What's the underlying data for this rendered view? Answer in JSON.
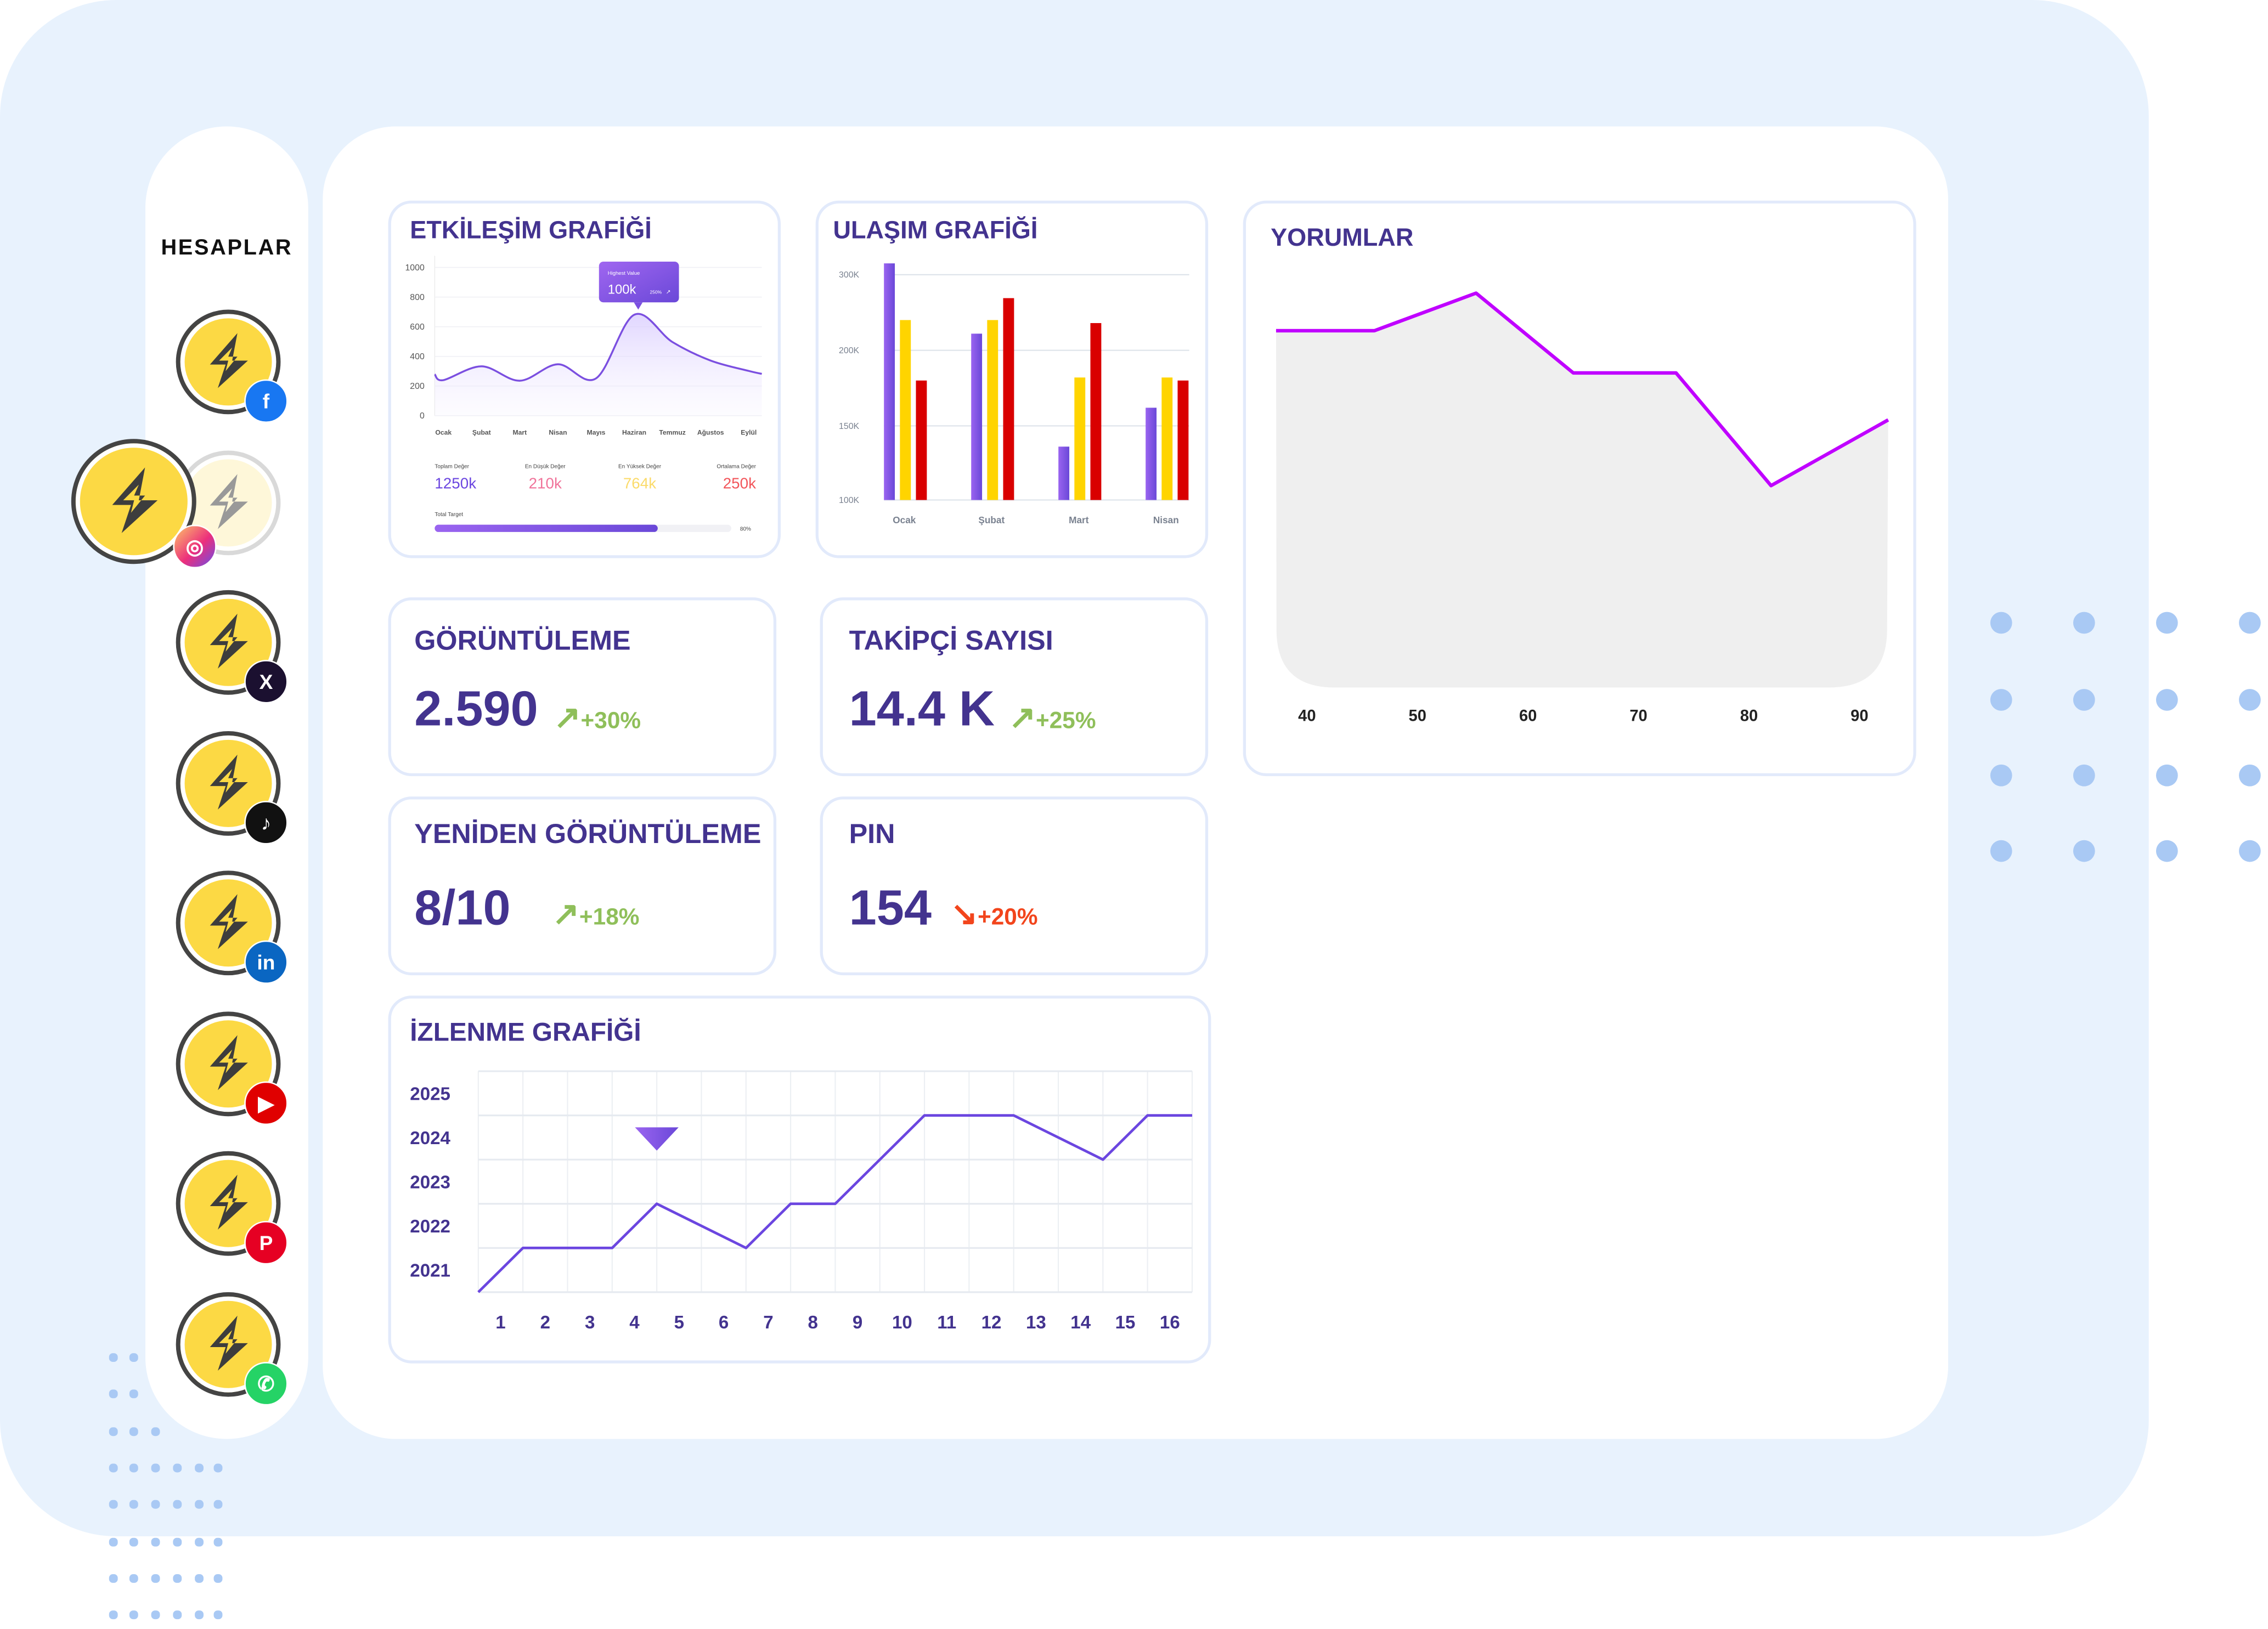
{
  "sidebar": {
    "title": "HESAPLAR",
    "accounts": [
      {
        "platform": "facebook",
        "icon": "facebook-icon",
        "glyph": "f",
        "color": "#1877f2",
        "selected": false
      },
      {
        "platform": "instagram",
        "icon": "instagram-icon",
        "glyph": "◎",
        "color": "#e1306c",
        "selected": true
      },
      {
        "platform": "x",
        "icon": "x-icon",
        "glyph": "X",
        "color": "#1b1030",
        "selected": false
      },
      {
        "platform": "tiktok",
        "icon": "tiktok-icon",
        "glyph": "♪",
        "color": "#111111",
        "selected": false
      },
      {
        "platform": "linkedin",
        "icon": "linkedin-icon",
        "glyph": "in",
        "color": "#0a66c2",
        "selected": false
      },
      {
        "platform": "youtube",
        "icon": "youtube-icon",
        "glyph": "▶",
        "color": "#e00000",
        "selected": false
      },
      {
        "platform": "pinterest",
        "icon": "pinterest-icon",
        "glyph": "P",
        "color": "#e60023",
        "selected": false
      },
      {
        "platform": "whatsapp",
        "icon": "whatsapp-icon",
        "glyph": "✆",
        "color": "#25d366",
        "selected": false
      }
    ]
  },
  "colors": {
    "title": "#43338f",
    "up": "#8fbf5a",
    "down": "#f2451c",
    "accent": "#7b4fe0",
    "background": "#e8f2fd"
  },
  "kpis": [
    {
      "title": "GÖRÜNTÜLEME",
      "value": "2.590",
      "change": "+30%",
      "direction": "up",
      "arrow": "↗"
    },
    {
      "title": "TAKİPÇİ SAYISI",
      "value": "14.4 K",
      "change": "+25%",
      "direction": "up",
      "arrow": "↗"
    },
    {
      "title": "YENİDEN GÖRÜNTÜLEME",
      "value": "8/10",
      "change": "+18%",
      "direction": "up",
      "arrow": "↗"
    },
    {
      "title": "PIN",
      "value": "154",
      "change": "+20%",
      "direction": "down",
      "arrow": "↘"
    }
  ],
  "chart_data": [
    {
      "type": "area",
      "title": "ETKİLEŞİM GRAFİĞİ",
      "categories": [
        "Ocak",
        "Şubat",
        "Mart",
        "Nisan",
        "Mayıs",
        "Haziran",
        "Temmuz",
        "Ağustos",
        "Eylül"
      ],
      "values": [
        240,
        333,
        236,
        347,
        252,
        681,
        497,
        372,
        302
      ],
      "yticks": [
        0,
        200,
        400,
        600,
        800,
        1000
      ],
      "ylim": [
        0,
        1000
      ],
      "grid": true,
      "tooltip": {
        "label": "Highest Value",
        "value": "100k",
        "change": "250%"
      },
      "stats": [
        {
          "label": "Toplam Değer",
          "value": "1250k",
          "color": "#6b46e0"
        },
        {
          "label": "En Düşük Değer",
          "value": "210k",
          "color": "#f0739a"
        },
        {
          "label": "En Yüksek Değer",
          "value": "764k",
          "color": "#fbdb6a"
        },
        {
          "label": "Ortalama Değer",
          "value": "250k",
          "color": "#f2555a"
        }
      ],
      "target": {
        "label": "Total Target",
        "percent": 80,
        "percent_label": "80%"
      }
    },
    {
      "type": "bar",
      "title": "ULAŞIM GRAFİĞİ",
      "categories": [
        "Ocak",
        "Şubat",
        "Mart",
        "Nisan"
      ],
      "ytick_values": [
        100,
        150,
        200,
        300
      ],
      "ytick_labels": [
        "100K",
        "150K",
        "200K",
        "300K"
      ],
      "grid": true,
      "series": [
        {
          "values": [
            315,
            222,
            136,
            162
          ],
          "color": "#7b4fe0"
        },
        {
          "values": [
            240,
            240,
            182,
            182
          ],
          "color": "#ffd400"
        },
        {
          "values": [
            180,
            269,
            236,
            180
          ],
          "color": "#d90000"
        }
      ]
    },
    {
      "type": "area",
      "title": "YORUMLAR",
      "x": [
        37.2,
        46.1,
        55.3,
        64.1,
        73.4,
        82,
        92.6
      ],
      "y": [
        76,
        76,
        84,
        67,
        67,
        43,
        57
      ],
      "xticks": [
        40,
        50,
        60,
        70,
        80,
        90
      ],
      "line_color": "#c000ff",
      "fill_color": "#efefef"
    },
    {
      "type": "line",
      "title": "İZLENME GRAFİĞİ",
      "xticks": [
        1,
        2,
        3,
        4,
        5,
        6,
        7,
        8,
        9,
        10,
        11,
        12,
        13,
        14,
        15,
        16
      ],
      "yticks": [
        2021,
        2022,
        2023,
        2024,
        2025
      ],
      "xlim": [
        0.5,
        16.5
      ],
      "ylim": [
        2020.5,
        2025.5
      ],
      "x": [
        0.5,
        1.5,
        2.5,
        3.5,
        4.5,
        5.5,
        6.5,
        7.5,
        8.5,
        9.5,
        10.5,
        11.5,
        12.5,
        13.5,
        14.5,
        15.5,
        16.5
      ],
      "y": [
        2020.5,
        2021.5,
        2021.5,
        2021.5,
        2022.5,
        2022,
        2021.5,
        2022.5,
        2022.5,
        2023.5,
        2024.5,
        2024.5,
        2024.5,
        2024,
        2023.5,
        2024.5,
        2024.5
      ],
      "marker": {
        "x": 4.5,
        "y": 2024
      },
      "grid": true,
      "line_color": "#6b46e0"
    }
  ]
}
